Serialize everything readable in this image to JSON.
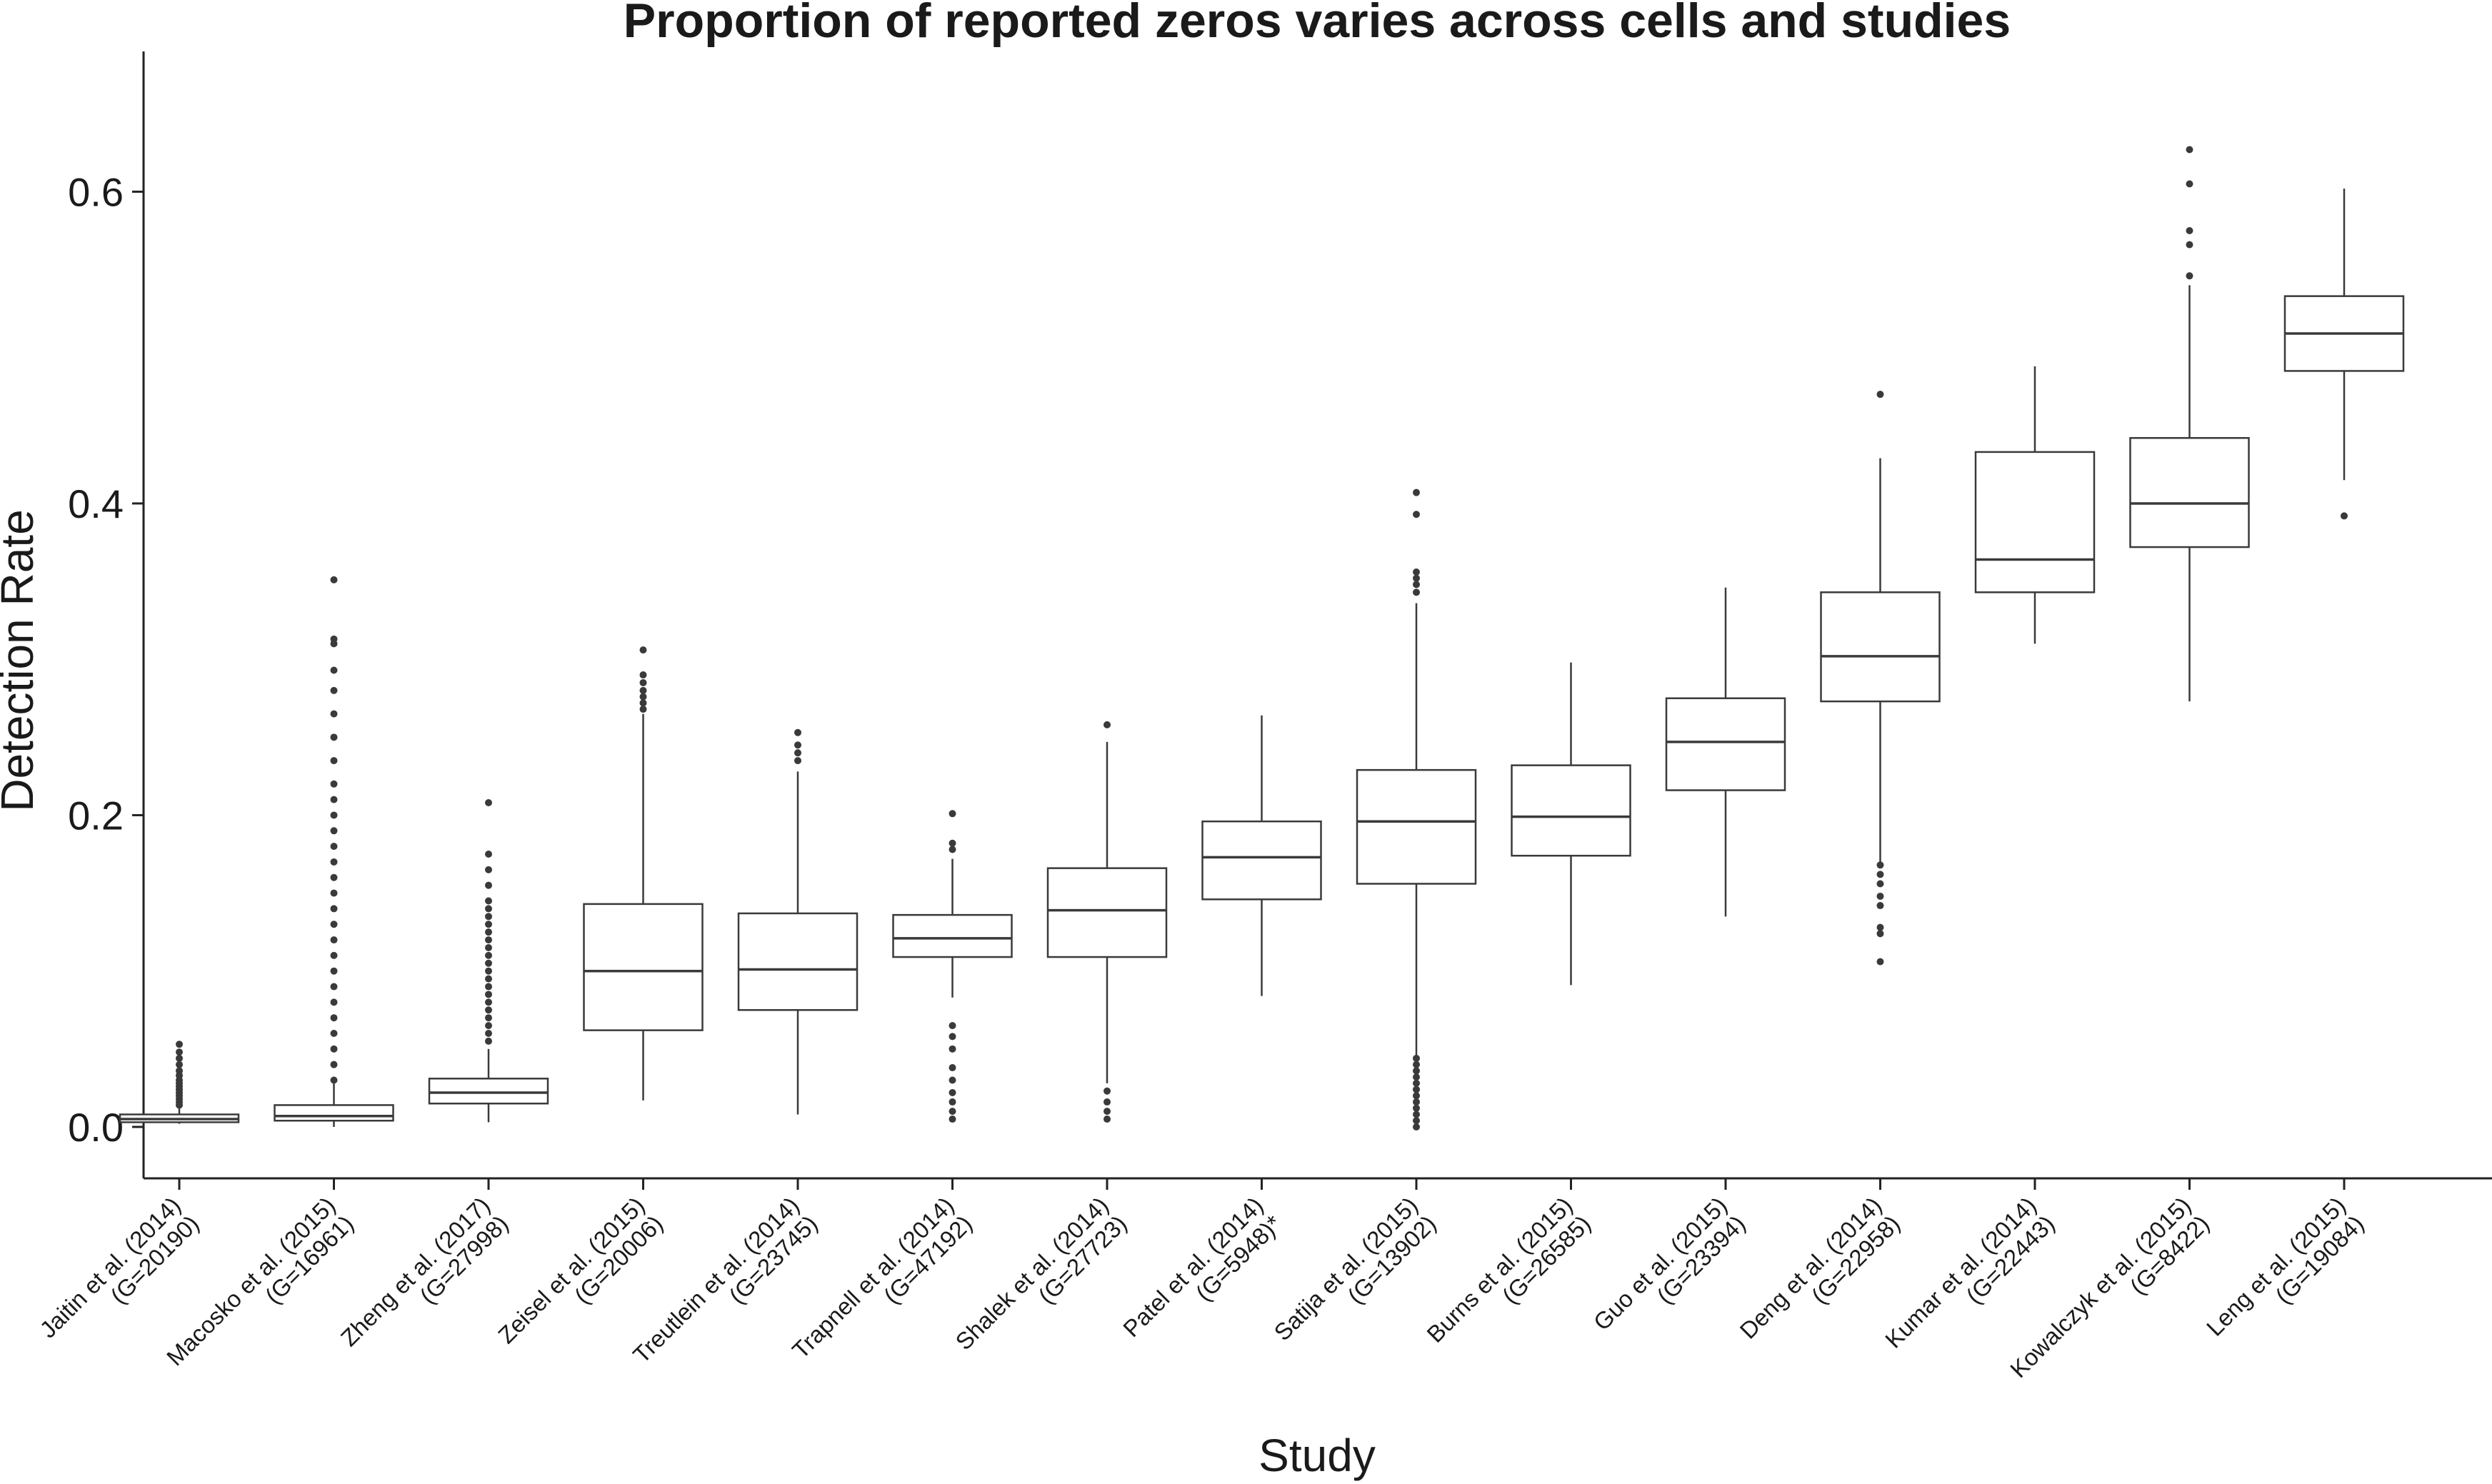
{
  "chart_data": {
    "type": "boxplot",
    "title": "Proportion of reported zeros varies across cells and studies",
    "xlabel": "Study",
    "ylabel": "Detection Rate",
    "ylim": [
      -0.033,
      0.69
    ],
    "yticks": [
      "0.0",
      "0.2",
      "0.4",
      "0.6"
    ],
    "ytick_values": [
      0.0,
      0.2,
      0.4,
      0.6
    ],
    "grid": false,
    "series": [
      {
        "label": [
          "Jaitin et al. (2014)",
          "(G=20190)"
        ],
        "whisker_low": 0.002,
        "q1": 0.003,
        "median": 0.005,
        "q3": 0.008,
        "whisker_high": 0.012,
        "outliers": [
          0.014,
          0.016,
          0.018,
          0.02,
          0.022,
          0.024,
          0.026,
          0.028,
          0.03,
          0.033,
          0.036,
          0.04,
          0.044,
          0.048,
          0.053
        ]
      },
      {
        "label": [
          "Macosko et al. (2015)",
          "(G=16961)"
        ],
        "whisker_low": 0.0,
        "q1": 0.004,
        "median": 0.007,
        "q3": 0.014,
        "whisker_high": 0.028,
        "outliers": [
          0.03,
          0.04,
          0.05,
          0.06,
          0.07,
          0.08,
          0.09,
          0.1,
          0.11,
          0.12,
          0.13,
          0.14,
          0.15,
          0.16,
          0.17,
          0.18,
          0.19,
          0.2,
          0.21,
          0.22,
          0.235,
          0.25,
          0.265,
          0.28,
          0.293,
          0.31,
          0.313,
          0.351
        ]
      },
      {
        "label": [
          "Zheng et al. (2017)",
          "(G=27998)"
        ],
        "whisker_low": 0.003,
        "q1": 0.015,
        "median": 0.022,
        "q3": 0.031,
        "whisker_high": 0.05,
        "outliers": [
          0.055,
          0.06,
          0.065,
          0.07,
          0.075,
          0.08,
          0.085,
          0.09,
          0.095,
          0.1,
          0.105,
          0.11,
          0.115,
          0.12,
          0.125,
          0.13,
          0.135,
          0.14,
          0.145,
          0.155,
          0.165,
          0.175,
          0.208
        ]
      },
      {
        "label": [
          "Zeisel et al. (2015)",
          "(G=20006)"
        ],
        "whisker_low": 0.017,
        "q1": 0.062,
        "median": 0.1,
        "q3": 0.143,
        "whisker_high": 0.265,
        "outliers": [
          0.268,
          0.272,
          0.276,
          0.28,
          0.285,
          0.29,
          0.306
        ]
      },
      {
        "label": [
          "Treutlein et al. (2014)",
          "(G=23745)"
        ],
        "whisker_low": 0.008,
        "q1": 0.075,
        "median": 0.101,
        "q3": 0.137,
        "whisker_high": 0.228,
        "outliers": [
          0.235,
          0.24,
          0.245,
          0.253
        ]
      },
      {
        "label": [
          "Trapnell et al. (2014)",
          "(G=47192)"
        ],
        "whisker_low": 0.083,
        "q1": 0.109,
        "median": 0.121,
        "q3": 0.136,
        "whisker_high": 0.172,
        "outliers": [
          0.005,
          0.01,
          0.016,
          0.022,
          0.03,
          0.038,
          0.05,
          0.058,
          0.065,
          0.178,
          0.182,
          0.201
        ]
      },
      {
        "label": [
          "Shalek et al. (2014)",
          "(G=27723)"
        ],
        "whisker_low": 0.028,
        "q1": 0.109,
        "median": 0.139,
        "q3": 0.166,
        "whisker_high": 0.247,
        "outliers": [
          0.005,
          0.01,
          0.016,
          0.023,
          0.258
        ]
      },
      {
        "label": [
          "Patel et al. (2014)",
          "(G=5948)*"
        ],
        "whisker_low": 0.084,
        "q1": 0.146,
        "median": 0.173,
        "q3": 0.196,
        "whisker_high": 0.264,
        "outliers": []
      },
      {
        "label": [
          "Satija et al. (2015)",
          "(G=13902)"
        ],
        "whisker_low": 0.046,
        "q1": 0.156,
        "median": 0.196,
        "q3": 0.229,
        "whisker_high": 0.336,
        "outliers": [
          0.0,
          0.004,
          0.008,
          0.012,
          0.016,
          0.02,
          0.024,
          0.028,
          0.032,
          0.036,
          0.04,
          0.044,
          0.343,
          0.348,
          0.352,
          0.356,
          0.393,
          0.407
        ]
      },
      {
        "label": [
          "Burns et al. (2015)",
          "(G=26585)"
        ],
        "whisker_low": 0.091,
        "q1": 0.174,
        "median": 0.199,
        "q3": 0.232,
        "whisker_high": 0.298,
        "outliers": []
      },
      {
        "label": [
          "Guo et al. (2015)",
          "(G=23394)"
        ],
        "whisker_low": 0.135,
        "q1": 0.216,
        "median": 0.247,
        "q3": 0.275,
        "whisker_high": 0.346,
        "outliers": []
      },
      {
        "label": [
          "Deng et al. (2014)",
          "(G=22958)"
        ],
        "whisker_low": 0.17,
        "q1": 0.273,
        "median": 0.302,
        "q3": 0.343,
        "whisker_high": 0.429,
        "outliers": [
          0.106,
          0.124,
          0.128,
          0.142,
          0.148,
          0.156,
          0.162,
          0.168,
          0.47
        ]
      },
      {
        "label": [
          "Kumar et al. (2014)",
          "(G=22443)"
        ],
        "whisker_low": 0.31,
        "q1": 0.343,
        "median": 0.364,
        "q3": 0.433,
        "whisker_high": 0.488,
        "outliers": []
      },
      {
        "label": [
          "Kowalczyk et al. (2015)",
          "(G=8422)"
        ],
        "whisker_low": 0.273,
        "q1": 0.372,
        "median": 0.4,
        "q3": 0.442,
        "whisker_high": 0.54,
        "outliers": [
          0.546,
          0.566,
          0.575,
          0.605,
          0.627
        ]
      },
      {
        "label": [
          "Leng et al. (2015)",
          "(G=19084)"
        ],
        "whisker_low": 0.415,
        "q1": 0.485,
        "median": 0.509,
        "q3": 0.533,
        "whisker_high": 0.602,
        "outliers": [
          0.392
        ]
      }
    ]
  }
}
